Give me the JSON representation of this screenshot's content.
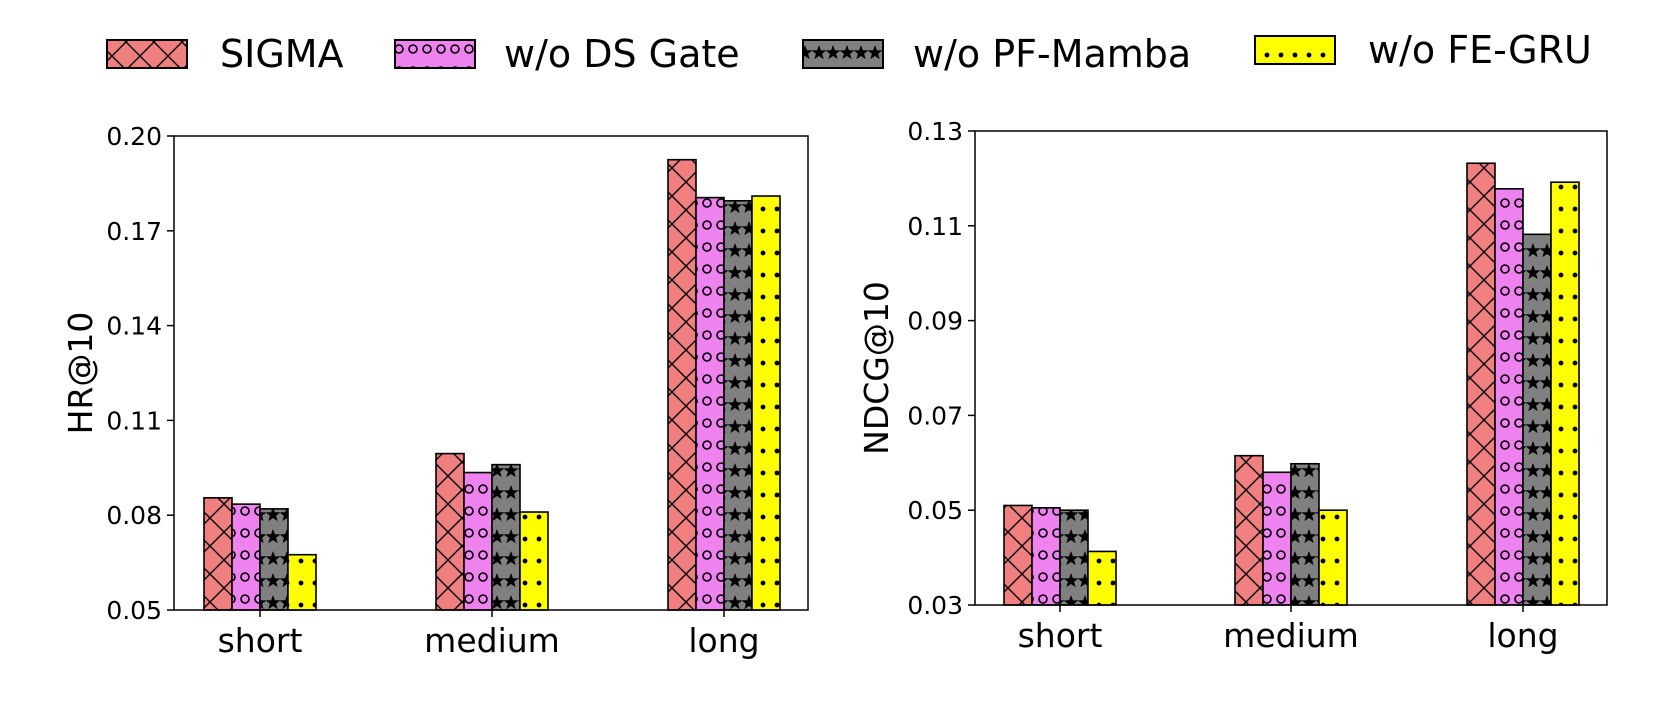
{
  "legend": [
    {
      "name": "SIGMA",
      "color": "#f08080",
      "pattern": "cross-hatch"
    },
    {
      "name": "w/o DS Gate",
      "color": "#ee82ee",
      "pattern": "circles"
    },
    {
      "name": "w/o PF-Mamba",
      "color": "#808080",
      "pattern": "stars"
    },
    {
      "name": "w/o FE-GRU",
      "color": "#ffff00",
      "pattern": "dots"
    }
  ],
  "chart_data": [
    {
      "type": "bar",
      "title": "",
      "xlabel": "",
      "ylabel": "HR@10",
      "ylim": [
        0.05,
        0.2
      ],
      "yticks": [
        "0.05",
        "0.08",
        "0.11",
        "0.14",
        "0.17",
        "0.20"
      ],
      "categories": [
        "short",
        "medium",
        "long"
      ],
      "series": [
        {
          "name": "SIGMA",
          "values": [
            0.0855,
            0.0995,
            0.1925
          ]
        },
        {
          "name": "w/o DS Gate",
          "values": [
            0.0835,
            0.0935,
            0.1805
          ]
        },
        {
          "name": "w/o PF-Mamba",
          "values": [
            0.082,
            0.096,
            0.1795
          ]
        },
        {
          "name": "w/o FE-GRU",
          "values": [
            0.0675,
            0.081,
            0.181
          ]
        }
      ]
    },
    {
      "type": "bar",
      "title": "",
      "xlabel": "",
      "ylabel": "NDCG@10",
      "ylim": [
        0.03,
        0.13
      ],
      "yticks": [
        "0.03",
        "0.05",
        "0.07",
        "0.09",
        "0.11",
        "0.13"
      ],
      "categories": [
        "short",
        "medium",
        "long"
      ],
      "series": [
        {
          "name": "SIGMA",
          "values": [
            0.051,
            0.0615,
            0.1232
          ]
        },
        {
          "name": "w/o DS Gate",
          "values": [
            0.0505,
            0.058,
            0.1178
          ]
        },
        {
          "name": "w/o PF-Mamba",
          "values": [
            0.05,
            0.0598,
            0.1082
          ]
        },
        {
          "name": "w/o FE-GRU",
          "values": [
            0.0413,
            0.05,
            0.1192
          ]
        }
      ]
    }
  ]
}
